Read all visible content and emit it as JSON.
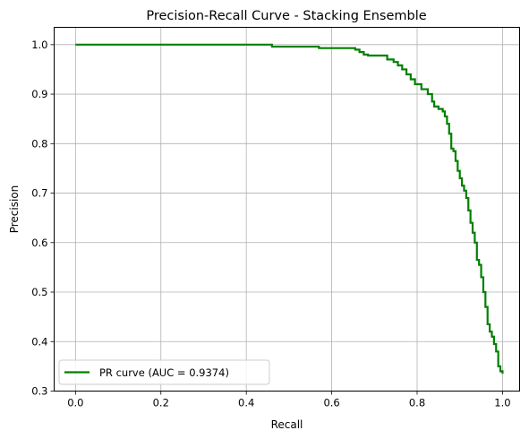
{
  "chart_data": {
    "type": "line",
    "title": "Precision-Recall Curve - Stacking Ensemble",
    "xlabel": "Recall",
    "ylabel": "Precision",
    "xlim": [
      -0.05,
      1.04
    ],
    "ylim": [
      0.3,
      1.035
    ],
    "xticks": [
      0.0,
      0.2,
      0.4,
      0.6,
      0.8,
      1.0
    ],
    "xtick_labels": [
      "0.0",
      "0.2",
      "0.4",
      "0.6",
      "0.8",
      "1.0"
    ],
    "yticks": [
      0.3,
      0.4,
      0.5,
      0.6,
      0.7,
      0.8,
      0.9,
      1.0
    ],
    "ytick_labels": [
      "0.3",
      "0.4",
      "0.5",
      "0.6",
      "0.7",
      "0.8",
      "0.9",
      "1.0"
    ],
    "grid": true,
    "legend_position": "lower-left",
    "series": [
      {
        "name": "PR curve (AUC = 0.9374)",
        "color": "#008000",
        "x": [
          0.0,
          0.455,
          0.46,
          0.565,
          0.57,
          0.65,
          0.655,
          0.665,
          0.675,
          0.685,
          0.72,
          0.73,
          0.745,
          0.755,
          0.765,
          0.775,
          0.785,
          0.795,
          0.81,
          0.825,
          0.835,
          0.84,
          0.85,
          0.86,
          0.865,
          0.87,
          0.875,
          0.88,
          0.885,
          0.89,
          0.895,
          0.9,
          0.905,
          0.91,
          0.915,
          0.92,
          0.925,
          0.93,
          0.935,
          0.94,
          0.945,
          0.95,
          0.955,
          0.96,
          0.965,
          0.97,
          0.975,
          0.98,
          0.985,
          0.99,
          0.995,
          1.0
        ],
        "y": [
          1.0,
          1.0,
          0.996,
          0.996,
          0.993,
          0.993,
          0.99,
          0.985,
          0.98,
          0.978,
          0.978,
          0.97,
          0.965,
          0.958,
          0.95,
          0.94,
          0.93,
          0.92,
          0.91,
          0.9,
          0.885,
          0.875,
          0.87,
          0.865,
          0.855,
          0.84,
          0.82,
          0.79,
          0.785,
          0.765,
          0.745,
          0.73,
          0.715,
          0.705,
          0.69,
          0.665,
          0.64,
          0.62,
          0.6,
          0.565,
          0.555,
          0.53,
          0.5,
          0.47,
          0.435,
          0.42,
          0.41,
          0.395,
          0.38,
          0.35,
          0.34,
          0.335
        ]
      }
    ]
  }
}
